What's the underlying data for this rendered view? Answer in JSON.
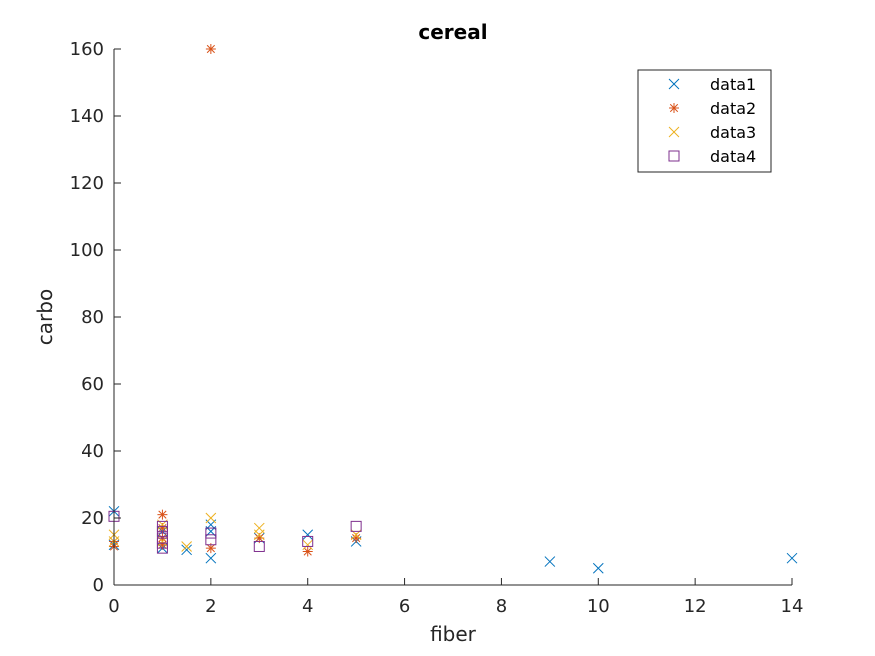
{
  "chart_data": {
    "type": "scatter",
    "title": "cereal",
    "xlabel": "fiber",
    "ylabel": "carbo",
    "xlim": [
      0,
      14
    ],
    "ylim": [
      0,
      160
    ],
    "xticks": [
      0,
      2,
      4,
      6,
      8,
      10,
      12,
      14
    ],
    "yticks": [
      0,
      20,
      40,
      60,
      80,
      100,
      120,
      140,
      160
    ],
    "grid": false,
    "legend_position": "top-right",
    "series": [
      {
        "name": "data1",
        "marker": "x",
        "color": "#0072BD",
        "points": [
          [
            0,
            22
          ],
          [
            0,
            12
          ],
          [
            1,
            16
          ],
          [
            1,
            11
          ],
          [
            1.5,
            10.5
          ],
          [
            2,
            18
          ],
          [
            2,
            16
          ],
          [
            2,
            8
          ],
          [
            3,
            14
          ],
          [
            4,
            15
          ],
          [
            5,
            13
          ],
          [
            9,
            7
          ],
          [
            10,
            5
          ],
          [
            14,
            8
          ]
        ]
      },
      {
        "name": "data2",
        "marker": "asterisk",
        "color": "#D95319",
        "points": [
          [
            0,
            11.5
          ],
          [
            0,
            13
          ],
          [
            1,
            21
          ],
          [
            1,
            17
          ],
          [
            1,
            14
          ],
          [
            1,
            12
          ],
          [
            2,
            160
          ],
          [
            2,
            11
          ],
          [
            3,
            14
          ],
          [
            4,
            10
          ],
          [
            5,
            14
          ]
        ]
      },
      {
        "name": "data3",
        "marker": "x",
        "color": "#EDB120",
        "points": [
          [
            0,
            15
          ],
          [
            0,
            13
          ],
          [
            1,
            18
          ],
          [
            1,
            13
          ],
          [
            1.5,
            11.5
          ],
          [
            2,
            20
          ],
          [
            3,
            17
          ],
          [
            3,
            15
          ],
          [
            4,
            12
          ],
          [
            5,
            15
          ]
        ]
      },
      {
        "name": "data4",
        "marker": "square",
        "color": "#7E2F8E",
        "points": [
          [
            0,
            20.5
          ],
          [
            1,
            17.5
          ],
          [
            1,
            16
          ],
          [
            1,
            14
          ],
          [
            1,
            12.5
          ],
          [
            1,
            11
          ],
          [
            2,
            15.5
          ],
          [
            2,
            13.5
          ],
          [
            3,
            11.5
          ],
          [
            4,
            13
          ],
          [
            5,
            17.5
          ]
        ]
      }
    ]
  }
}
